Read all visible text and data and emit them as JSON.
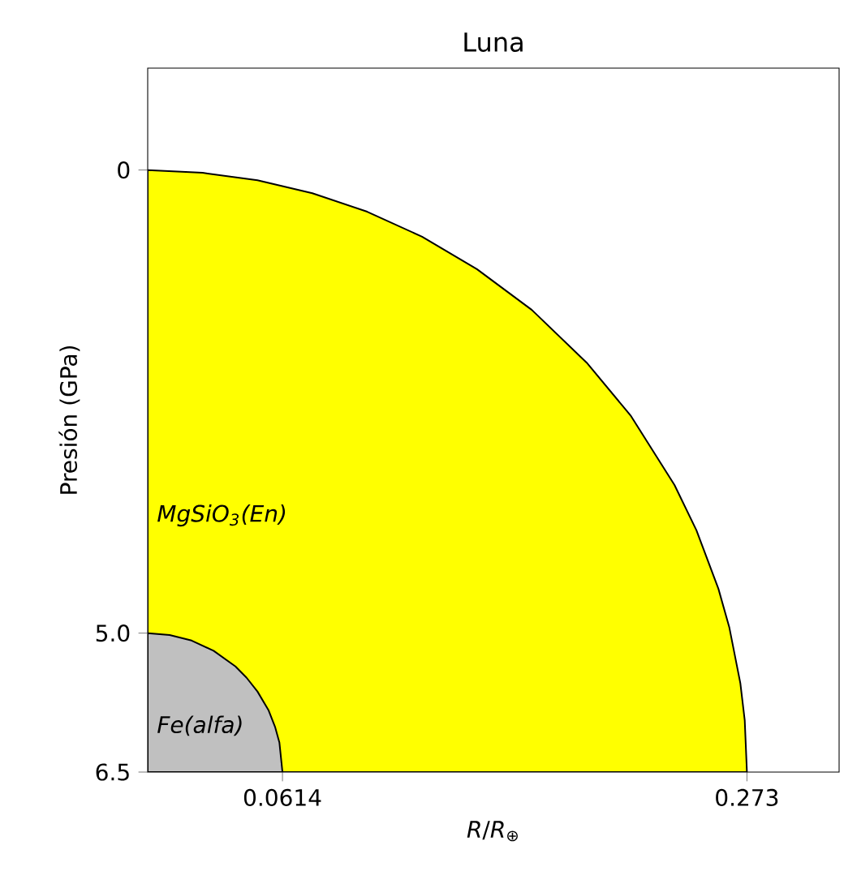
{
  "chart_data": {
    "type": "area",
    "title": "Luna",
    "xlabel": "*R*/*R*$_{⊕}$",
    "ylabel": "Presión (GPa)",
    "xlim": [
      0,
      0.315
    ],
    "ylim": [
      6.5,
      -1.1
    ],
    "xticks": [
      0.0614,
      0.273
    ],
    "yticks": [
      0,
      {
        "value": 5,
        "label": "5.0"
      },
      6.5
    ],
    "series": [
      {
        "color": "#ffff00",
        "x": [
          0,
          0,
          0.025,
          0.05,
          0.075,
          0.1,
          0.125,
          0.15,
          0.175,
          0.2,
          0.22,
          0.24,
          0.25,
          0.26,
          0.265,
          0.27,
          0.272,
          0.273
        ],
        "values": [
          6.5,
          0,
          0.03,
          0.11,
          0.25,
          0.45,
          0.72,
          1.07,
          1.51,
          2.08,
          2.65,
          3.4,
          3.89,
          4.52,
          4.94,
          5.54,
          5.94,
          6.5
        ]
      },
      {
        "color": "#c0c0c0",
        "x": [
          0,
          0,
          0.01,
          0.02,
          0.03,
          0.04,
          0.045,
          0.05,
          0.055,
          0.058,
          0.06,
          0.0614
        ],
        "values": [
          6.5,
          5.0,
          5.02,
          5.08,
          5.19,
          5.36,
          5.48,
          5.63,
          5.83,
          6.01,
          6.18,
          6.5
        ]
      }
    ],
    "annotations": [
      {
        "text": "MgSiO$_{3}$(En)",
        "x": 0.003,
        "y": 3.73
      },
      {
        "text": "Fe(alfa)",
        "x": 0.003,
        "y": 6.0
      }
    ],
    "grid": false
  }
}
